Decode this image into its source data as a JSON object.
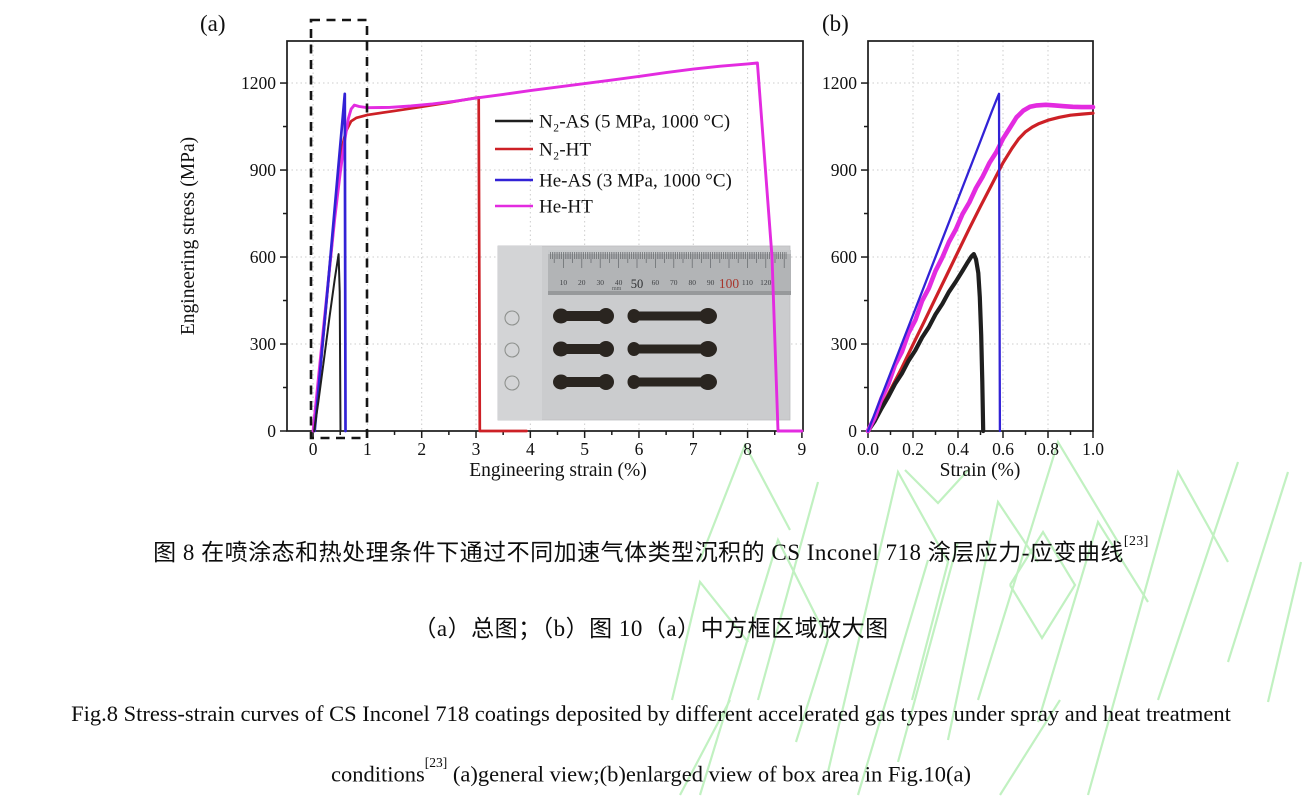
{
  "colors": {
    "frame": "#1a1a1a",
    "grid": "#cccccc",
    "black_series": "#1f1f1f",
    "red_series": "#cd2026",
    "blue_series": "#3222d6",
    "magenta_series": "#e32be0",
    "watermark": "#8fe68f",
    "ruler_red": "#a8352c"
  },
  "figure": {
    "panel_a": {
      "label": "(a)",
      "x_label": "Engineering strain (%)",
      "y_label": "Engineering stress (MPa)"
    },
    "panel_b": {
      "label": "(b)",
      "x_label": "Strain (%)"
    },
    "legend": {
      "entries": [
        {
          "id": "n2-as",
          "label": "N₂-AS (5 MPa, 1000 °C)",
          "color": "#1f1f1f"
        },
        {
          "id": "n2-ht",
          "label": "N₂-HT",
          "color": "#cd2026"
        },
        {
          "id": "he-as",
          "label": "He-AS (3 MPa, 1000 °C)",
          "color": "#3222d6"
        },
        {
          "id": "he-ht",
          "label": "He-HT",
          "color": "#e32be0"
        }
      ]
    },
    "inset_photo": {
      "ruler_numbers": [
        "10",
        "20",
        "30",
        "40",
        "50",
        "60",
        "70",
        "80",
        "90",
        "100",
        "110",
        "120"
      ],
      "ruler_unit": "mm"
    }
  },
  "captions": {
    "cn_line1": "图 8 在喷涂态和热处理条件下通过不同加速气体类型沉积的 CS Inconel 718 涂层应力-应变曲线",
    "cn_line1_sup": "[23]",
    "cn_line2": "（a）总图；（b）图 10（a）中方框区域放大图",
    "en_line1": "Fig.8 Stress-strain curves of CS Inconel 718 coatings deposited by different accelerated gas types under spray and heat treatment",
    "en_line2_pre": "conditions",
    "en_line2_sup": "[23]",
    "en_line2_post": " (a)general view;(b)enlarged view of box area in Fig.10(a)"
  },
  "chart_data": [
    {
      "type": "line",
      "panel": "a",
      "xlabel": "Engineering strain (%)",
      "ylabel": "Engineering stress (MPa)",
      "xlim": [
        -0.48,
        9.02
      ],
      "ylim": [
        0,
        1345
      ],
      "grid": true,
      "x_ticks": [
        0,
        1,
        2,
        3,
        4,
        5,
        6,
        7,
        8,
        9
      ],
      "x_tick_labels": [
        "0",
        "1",
        "2",
        "3",
        "4",
        "5",
        "6",
        "7",
        "8",
        "9"
      ],
      "y_ticks": [
        0,
        300,
        600,
        900,
        1200
      ],
      "x_minor_step": 0.5,
      "y_minor_step": 150,
      "series": [
        {
          "id": "n2-ht",
          "name": "N₂-HT",
          "color": "#cd2026",
          "width": 2.7,
          "points": [
            [
              0.02,
              0
            ],
            [
              0.1,
              150
            ],
            [
              0.2,
              350
            ],
            [
              0.3,
              555
            ],
            [
              0.4,
              745
            ],
            [
              0.5,
              915
            ],
            [
              0.55,
              990
            ],
            [
              0.6,
              1032
            ],
            [
              0.7,
              1068
            ],
            [
              0.8,
              1080
            ],
            [
              1.0,
              1090
            ],
            [
              1.5,
              1104
            ],
            [
              2.0,
              1118
            ],
            [
              2.5,
              1133
            ],
            [
              3.0,
              1149
            ],
            [
              3.05,
              1150
            ],
            [
              3.07,
              0
            ],
            [
              3.93,
              0
            ]
          ]
        },
        {
          "id": "he-ht",
          "name": "He-HT",
          "color": "#e32be0",
          "width": 2.9,
          "points": [
            [
              0.0,
              0
            ],
            [
              0.1,
              185
            ],
            [
              0.2,
              370
            ],
            [
              0.3,
              555
            ],
            [
              0.4,
              735
            ],
            [
              0.5,
              890
            ],
            [
              0.58,
              1000
            ],
            [
              0.65,
              1078
            ],
            [
              0.7,
              1110
            ],
            [
              0.76,
              1124
            ],
            [
              0.85,
              1119
            ],
            [
              1.0,
              1115
            ],
            [
              1.4,
              1116
            ],
            [
              1.8,
              1121
            ],
            [
              2.2,
              1128
            ],
            [
              2.6,
              1137
            ],
            [
              3.0,
              1148
            ],
            [
              3.5,
              1161
            ],
            [
              4.0,
              1174
            ],
            [
              4.5,
              1186
            ],
            [
              5.0,
              1198
            ],
            [
              5.5,
              1210
            ],
            [
              6.0,
              1223
            ],
            [
              6.5,
              1236
            ],
            [
              7.0,
              1248
            ],
            [
              7.5,
              1258
            ],
            [
              8.0,
              1266
            ],
            [
              8.18,
              1269
            ],
            [
              8.45,
              600
            ],
            [
              8.56,
              0
            ],
            [
              9.0,
              0
            ]
          ]
        },
        {
          "id": "he-as",
          "name": "He-AS (3 MPa, 1000 °C)",
          "color": "#3222d6",
          "width": 2.7,
          "points": [
            [
              0.03,
              0
            ],
            [
              0.3,
              560
            ],
            [
              0.585,
              1163
            ],
            [
              0.597,
              0
            ]
          ]
        },
        {
          "id": "n2-as",
          "name": "N₂-AS (5 MPa, 1000 °C)",
          "color": "#1f1f1f",
          "width": 2.0,
          "points": [
            [
              0.02,
              0
            ],
            [
              0.1,
              105
            ],
            [
              0.2,
              245
            ],
            [
              0.3,
              390
            ],
            [
              0.4,
              525
            ],
            [
              0.47,
              610
            ],
            [
              0.49,
              480
            ],
            [
              0.505,
              0
            ]
          ]
        }
      ]
    },
    {
      "type": "line",
      "panel": "b",
      "xlabel": "Strain (%)",
      "ylabel": "",
      "xlim": [
        0,
        1.0
      ],
      "ylim": [
        0,
        1345
      ],
      "grid": true,
      "x_ticks": [
        0,
        0.2,
        0.4,
        0.6,
        0.8,
        1.0
      ],
      "x_tick_labels": [
        "0.0",
        "0.2",
        "0.4",
        "0.6",
        "0.8",
        "1.0"
      ],
      "y_ticks": [
        0,
        300,
        600,
        900,
        1200
      ],
      "x_minor_step": 0.1,
      "y_minor_step": 150,
      "series": [
        {
          "id": "n2-ht",
          "name": "N₂-HT",
          "color": "#cd2026",
          "width": 3.2,
          "points": [
            [
              0,
              0
            ],
            [
              0.05,
              68
            ],
            [
              0.1,
              142
            ],
            [
              0.15,
              218
            ],
            [
              0.2,
              298
            ],
            [
              0.25,
              378
            ],
            [
              0.3,
              458
            ],
            [
              0.35,
              538
            ],
            [
              0.4,
              618
            ],
            [
              0.45,
              698
            ],
            [
              0.5,
              775
            ],
            [
              0.55,
              850
            ],
            [
              0.6,
              925
            ],
            [
              0.64,
              975
            ],
            [
              0.67,
              1008
            ],
            [
              0.7,
              1032
            ],
            [
              0.73,
              1048
            ],
            [
              0.76,
              1060
            ],
            [
              0.8,
              1072
            ],
            [
              0.85,
              1082
            ],
            [
              0.9,
              1089
            ],
            [
              0.95,
              1093
            ],
            [
              1.0,
              1096
            ]
          ]
        },
        {
          "id": "n2-as",
          "name": "N₂-AS (5 MPa, 1000 °C)",
          "color": "#1f1f1f",
          "width": 4.2,
          "points": [
            [
              0,
              0
            ],
            [
              0.03,
              35
            ],
            [
              0.06,
              78
            ],
            [
              0.09,
              118
            ],
            [
              0.12,
              162
            ],
            [
              0.15,
              198
            ],
            [
              0.18,
              242
            ],
            [
              0.21,
              278
            ],
            [
              0.24,
              322
            ],
            [
              0.27,
              358
            ],
            [
              0.3,
              402
            ],
            [
              0.33,
              438
            ],
            [
              0.36,
              480
            ],
            [
              0.39,
              515
            ],
            [
              0.42,
              552
            ],
            [
              0.44,
              578
            ],
            [
              0.46,
              602
            ],
            [
              0.47,
              610
            ],
            [
              0.48,
              592
            ],
            [
              0.49,
              545
            ],
            [
              0.497,
              462
            ],
            [
              0.503,
              330
            ],
            [
              0.508,
              170
            ],
            [
              0.512,
              0
            ]
          ]
        },
        {
          "id": "he-ht",
          "name": "He-HT",
          "color": "#e32be0",
          "width": 4.6,
          "points": [
            [
              0,
              0
            ],
            [
              0.03,
              48
            ],
            [
              0.06,
              112
            ],
            [
              0.09,
              162
            ],
            [
              0.12,
              228
            ],
            [
              0.15,
              272
            ],
            [
              0.18,
              338
            ],
            [
              0.21,
              382
            ],
            [
              0.24,
              448
            ],
            [
              0.27,
              492
            ],
            [
              0.3,
              552
            ],
            [
              0.33,
              598
            ],
            [
              0.36,
              652
            ],
            [
              0.39,
              695
            ],
            [
              0.42,
              748
            ],
            [
              0.45,
              788
            ],
            [
              0.48,
              838
            ],
            [
              0.51,
              878
            ],
            [
              0.54,
              925
            ],
            [
              0.57,
              962
            ],
            [
              0.6,
              1008
            ],
            [
              0.63,
              1045
            ],
            [
              0.66,
              1082
            ],
            [
              0.69,
              1105
            ],
            [
              0.72,
              1118
            ],
            [
              0.75,
              1123
            ],
            [
              0.79,
              1125
            ],
            [
              0.83,
              1123
            ],
            [
              0.87,
              1120
            ],
            [
              0.91,
              1118
            ],
            [
              0.95,
              1117
            ],
            [
              1.0,
              1117
            ]
          ]
        },
        {
          "id": "he-as",
          "name": "He-AS (3 MPa, 1000 °C)",
          "color": "#3222d6",
          "width": 2.3,
          "points": [
            [
              0,
              0
            ],
            [
              0.2,
              400
            ],
            [
              0.4,
              800
            ],
            [
              0.5,
              1000
            ],
            [
              0.55,
              1102
            ],
            [
              0.575,
              1150
            ],
            [
              0.582,
              1163
            ],
            [
              0.586,
              0
            ]
          ]
        }
      ]
    }
  ]
}
